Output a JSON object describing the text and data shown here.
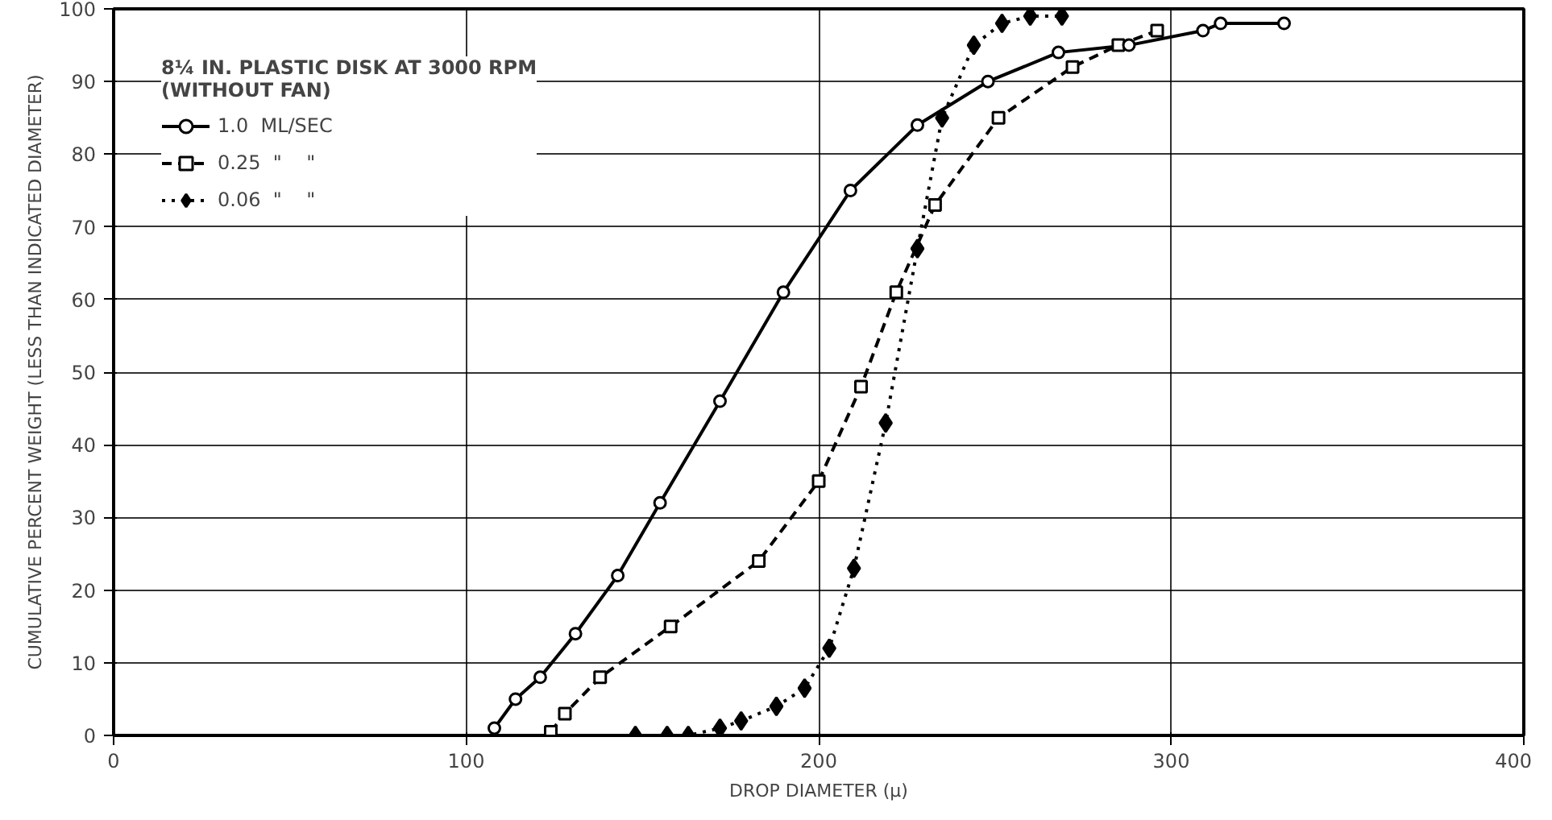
{
  "chart_data": {
    "type": "line",
    "xlabel": "DROP DIAMETER (μ)",
    "ylabel": "CUMULATIVE PERCENT WEIGHT (LESS THAN INDICATED DIAMETER)",
    "legend_title": "8¼ IN. PLASTIC DISK AT 3000 RPM\n(WITHOUT FAN)",
    "xlim": [
      0,
      400
    ],
    "xticks": [
      0,
      100,
      200,
      300,
      400
    ],
    "ylim": [
      0,
      100
    ],
    "yticks": [
      0,
      10,
      20,
      30,
      40,
      50,
      60,
      70,
      80,
      90,
      100
    ],
    "grid": true,
    "legend": "top left",
    "series": [
      {
        "name": "1.0  ML/SEC",
        "color": "#000000",
        "marker": "circle",
        "line_style": "solid",
        "x": [
          108,
          114,
          121,
          131,
          143,
          155,
          172,
          190,
          209,
          228,
          248,
          268,
          288,
          309,
          314,
          332
        ],
        "values": [
          1,
          5,
          8,
          14,
          22,
          32,
          46,
          61,
          75,
          84,
          90,
          94,
          95,
          97,
          98,
          98
        ]
      },
      {
        "name": "0.25  \"    \"",
        "color": "#000000",
        "marker": "square",
        "line_style": "dashed",
        "x": [
          124,
          128,
          138,
          158,
          183,
          200,
          212,
          222,
          233,
          251,
          272,
          285,
          296
        ],
        "values": [
          0.5,
          3,
          8,
          15,
          24,
          35,
          48,
          61,
          73,
          85,
          92,
          95,
          97
        ]
      },
      {
        "name": "0.06  \"    \"",
        "color": "#000000",
        "marker": "diamond",
        "line_style": "dotted",
        "x": [
          148,
          157,
          163,
          172,
          178,
          188,
          196,
          203,
          210,
          219,
          228,
          235,
          244,
          252,
          260,
          269
        ],
        "values": [
          0,
          0,
          0,
          1,
          2,
          4,
          6.5,
          12,
          23,
          43,
          67,
          85,
          95,
          98,
          99,
          99
        ]
      }
    ]
  }
}
